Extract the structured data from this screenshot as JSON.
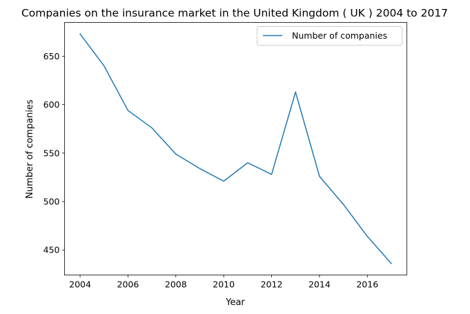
{
  "chart_data": {
    "type": "line",
    "title": "Companies on the insurance market in the United Kingdom ( UK ) 2004 to 2017",
    "xlabel": "Year",
    "ylabel": "Number of companies",
    "x": [
      2004,
      2005,
      2006,
      2007,
      2008,
      2009,
      2010,
      2011,
      2012,
      2013,
      2014,
      2015,
      2016,
      2017
    ],
    "series": [
      {
        "name": "Number of companies",
        "color": "#1f77b4",
        "values": [
          673,
          640,
          594,
          576,
          549,
          534,
          521,
          540,
          528,
          613,
          526,
          497,
          464,
          436
        ]
      }
    ],
    "xlim": [
      2003.35,
      2017.65
    ],
    "ylim": [
      424.15,
      684.85
    ],
    "xticks": [
      "2004",
      "2006",
      "2008",
      "2010",
      "2012",
      "2014",
      "2016"
    ],
    "yticks": [
      "450",
      "500",
      "550",
      "600",
      "650"
    ],
    "grid": false,
    "legend_position": "upper right"
  }
}
